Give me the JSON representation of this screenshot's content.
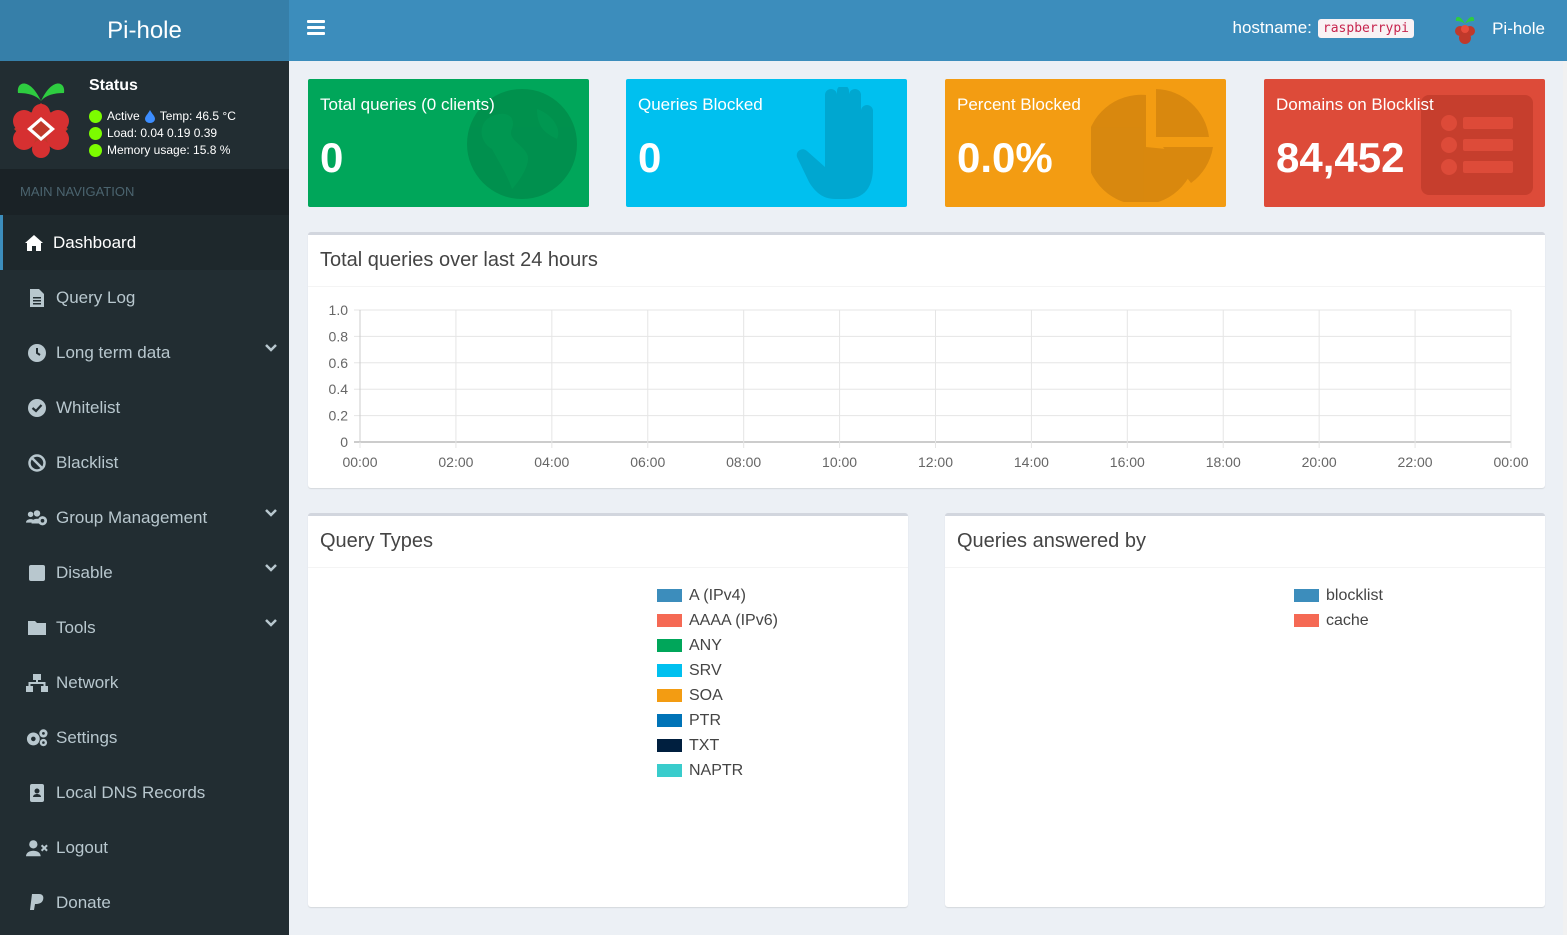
{
  "app": {
    "title": "Pi-hole"
  },
  "topbar": {
    "hostname_label": "hostname:",
    "hostname_value": "raspberrypi",
    "user_name": "Pi-hole"
  },
  "status": {
    "title": "Status",
    "active": "Active",
    "temp": "Temp: 46.5 °C",
    "load": "Load:  0.04  0.19  0.39",
    "memory": "Memory usage:  15.8 %"
  },
  "nav": {
    "header": "MAIN NAVIGATION",
    "items": [
      {
        "label": "Dashboard",
        "icon": "home-icon"
      },
      {
        "label": "Query Log",
        "icon": "file-icon"
      },
      {
        "label": "Long term data",
        "icon": "clock-icon"
      },
      {
        "label": "Whitelist",
        "icon": "check-circle-icon"
      },
      {
        "label": "Blacklist",
        "icon": "ban-icon"
      },
      {
        "label": "Group Management",
        "icon": "users-cog-icon"
      },
      {
        "label": "Disable",
        "icon": "stop-icon"
      },
      {
        "label": "Tools",
        "icon": "folder-icon"
      },
      {
        "label": "Network",
        "icon": "network-icon"
      },
      {
        "label": "Settings",
        "icon": "cogs-icon"
      },
      {
        "label": "Local DNS Records",
        "icon": "address-book-icon"
      },
      {
        "label": "Logout",
        "icon": "user-times-icon"
      },
      {
        "label": "Donate",
        "icon": "paypal-icon"
      }
    ]
  },
  "stats": {
    "total": {
      "label": "Total queries (0 clients)",
      "value": "0",
      "color": "#00a65a"
    },
    "blocked": {
      "label": "Queries Blocked",
      "value": "0",
      "color": "#00c0ef"
    },
    "percent": {
      "label": "Percent Blocked",
      "value": "0.0%",
      "color": "#f39c12"
    },
    "domains": {
      "label": "Domains on Blocklist",
      "value": "84,452",
      "color": "#dd4b39"
    }
  },
  "panels": {
    "queries_title": "Total queries over last 24 hours",
    "query_types_title": "Query Types",
    "answered_title": "Queries answered by"
  },
  "chart_data": {
    "type": "line",
    "title": "Total queries over last 24 hours",
    "x": [
      "00:00",
      "02:00",
      "04:00",
      "06:00",
      "08:00",
      "10:00",
      "12:00",
      "14:00",
      "16:00",
      "18:00",
      "20:00",
      "22:00",
      "00:00"
    ],
    "ylim": [
      0,
      1.0
    ],
    "yticks": [
      "1.0",
      "0.8",
      "0.6",
      "0.4",
      "0.2",
      "0"
    ],
    "series": [],
    "grid": true
  },
  "query_types": [
    {
      "label": "A (IPv4)",
      "color": "#3c8dbc"
    },
    {
      "label": "AAAA (IPv6)",
      "color": "#f56954"
    },
    {
      "label": "ANY",
      "color": "#00a65a"
    },
    {
      "label": "SRV",
      "color": "#00c0ef"
    },
    {
      "label": "SOA",
      "color": "#f39c12"
    },
    {
      "label": "PTR",
      "color": "#0073b7"
    },
    {
      "label": "TXT",
      "color": "#001f3f"
    },
    {
      "label": "NAPTR",
      "color": "#39cccc"
    }
  ],
  "answered_by": [
    {
      "label": "blocklist",
      "color": "#3c8dbc"
    },
    {
      "label": "cache",
      "color": "#f56954"
    }
  ]
}
